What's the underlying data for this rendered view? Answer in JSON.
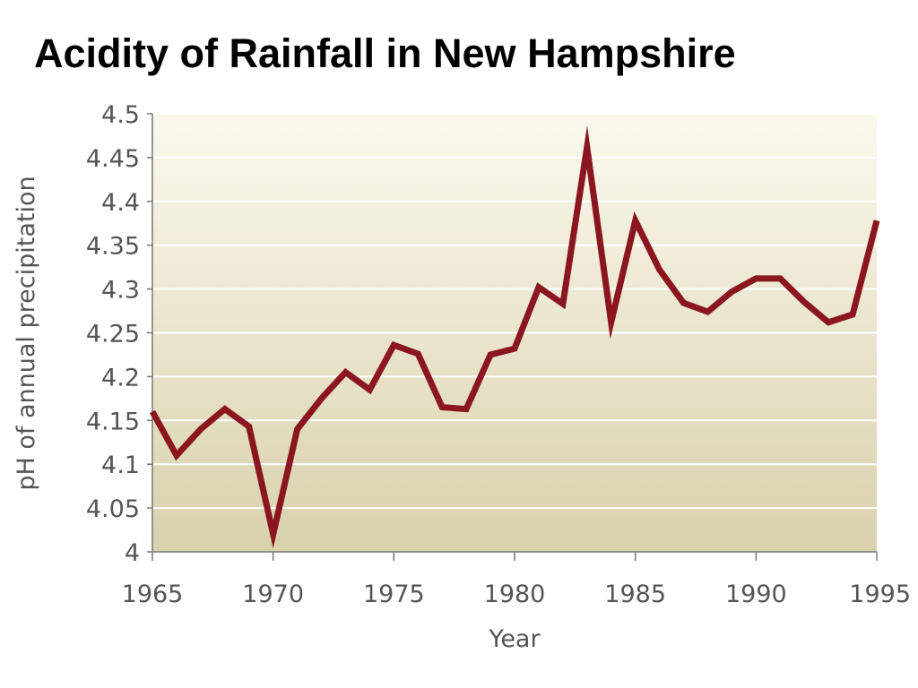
{
  "slide": {
    "title": "Acidity of Rainfall in New Hampshire"
  },
  "chart_data": {
    "type": "line",
    "xlabel": "Year",
    "ylabel": "pH of annual precipitation",
    "xlim": [
      1965,
      1995
    ],
    "ylim": [
      4.0,
      4.5
    ],
    "x_ticks": [
      1965,
      1970,
      1975,
      1980,
      1985,
      1990,
      1995
    ],
    "y_ticks": [
      "4",
      "4.05",
      "4.1",
      "4.15",
      "4.2",
      "4.25",
      "4.3",
      "4.35",
      "4.4",
      "4.45",
      "4.5"
    ],
    "grid": "horizontal",
    "legend": "none",
    "colors": {
      "line": "#8b1620",
      "background_top": "#fbf9ee",
      "background_bottom": "#d9d1ac",
      "grid": "#ffffff",
      "axis": "#777777"
    },
    "series": [
      {
        "x": [
          1965,
          1966,
          1967,
          1968,
          1969,
          1970,
          1971,
          1972,
          1973,
          1974,
          1975,
          1976,
          1977,
          1978,
          1979,
          1980,
          1981,
          1982,
          1983,
          1984,
          1985,
          1986,
          1987,
          1988,
          1989,
          1990,
          1991,
          1992,
          1993,
          1994,
          1995
        ],
        "y": [
          4.16,
          4.11,
          4.14,
          4.163,
          4.143,
          4.02,
          4.14,
          4.175,
          4.205,
          4.185,
          4.236,
          4.226,
          4.165,
          4.163,
          4.225,
          4.232,
          4.302,
          4.283,
          4.462,
          4.262,
          4.378,
          4.322,
          4.284,
          4.274,
          4.297,
          4.312,
          4.312,
          4.285,
          4.262,
          4.271,
          4.378
        ]
      }
    ]
  }
}
